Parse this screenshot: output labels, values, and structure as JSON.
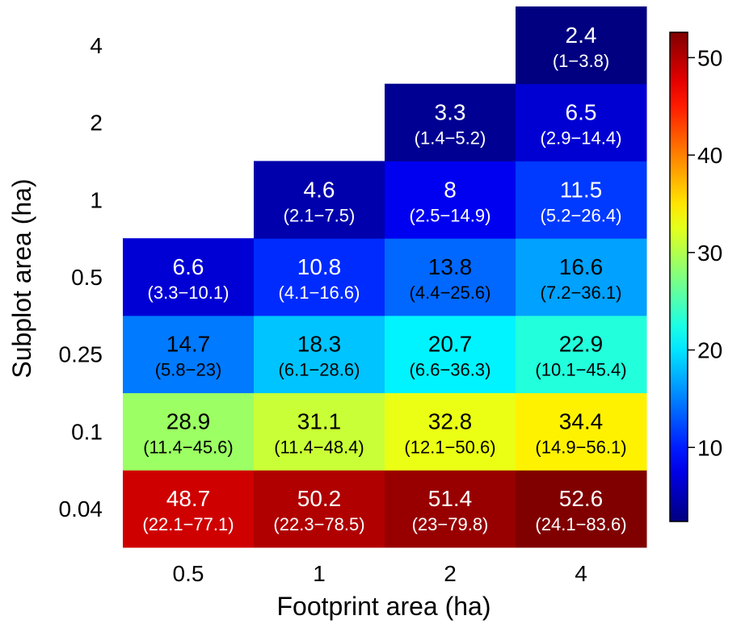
{
  "chart_data": {
    "type": "heatmap",
    "xlabel": "Footprint area (ha)",
    "ylabel": "Subplot area (ha)",
    "x_categories": [
      "0.5",
      "1",
      "2",
      "4"
    ],
    "y_categories": [
      "0.04",
      "0.1",
      "0.25",
      "0.5",
      "1",
      "2",
      "4"
    ],
    "cells": [
      {
        "x": "0.5",
        "y": "0.04",
        "value": 48.7,
        "ci": "(22.1−77.1)"
      },
      {
        "x": "1",
        "y": "0.04",
        "value": 50.2,
        "ci": "(22.3−78.5)"
      },
      {
        "x": "2",
        "y": "0.04",
        "value": 51.4,
        "ci": "(23−79.8)"
      },
      {
        "x": "4",
        "y": "0.04",
        "value": 52.6,
        "ci": "(24.1−83.6)"
      },
      {
        "x": "0.5",
        "y": "0.1",
        "value": 28.9,
        "ci": "(11.4−45.6)"
      },
      {
        "x": "1",
        "y": "0.1",
        "value": 31.1,
        "ci": "(11.4−48.4)"
      },
      {
        "x": "2",
        "y": "0.1",
        "value": 32.8,
        "ci": "(12.1−50.6)"
      },
      {
        "x": "4",
        "y": "0.1",
        "value": 34.4,
        "ci": "(14.9−56.1)"
      },
      {
        "x": "0.5",
        "y": "0.25",
        "value": 14.7,
        "ci": "(5.8−23)"
      },
      {
        "x": "1",
        "y": "0.25",
        "value": 18.3,
        "ci": "(6.1−28.6)"
      },
      {
        "x": "2",
        "y": "0.25",
        "value": 20.7,
        "ci": "(6.6−36.3)"
      },
      {
        "x": "4",
        "y": "0.25",
        "value": 22.9,
        "ci": "(10.1−45.4)"
      },
      {
        "x": "0.5",
        "y": "0.5",
        "value": 6.6,
        "ci": "(3.3−10.1)"
      },
      {
        "x": "1",
        "y": "0.5",
        "value": 10.8,
        "ci": "(4.1−16.6)"
      },
      {
        "x": "2",
        "y": "0.5",
        "value": 13.8,
        "ci": "(4.4−25.6)"
      },
      {
        "x": "4",
        "y": "0.5",
        "value": 16.6,
        "ci": "(7.2−36.1)"
      },
      {
        "x": "1",
        "y": "1",
        "value": 4.6,
        "ci": "(2.1−7.5)"
      },
      {
        "x": "2",
        "y": "1",
        "value": 8,
        "ci": "(2.5−14.9)"
      },
      {
        "x": "4",
        "y": "1",
        "value": 11.5,
        "ci": "(5.2−26.4)"
      },
      {
        "x": "2",
        "y": "2",
        "value": 3.3,
        "ci": "(1.4−5.2)"
      },
      {
        "x": "4",
        "y": "2",
        "value": 6.5,
        "ci": "(2.9−14.4)"
      },
      {
        "x": "4",
        "y": "4",
        "value": 2.4,
        "ci": "(1−3.8)"
      }
    ],
    "colorbar": {
      "colormap": "jet",
      "range": [
        2.4,
        52.6
      ],
      "ticks": [
        10,
        20,
        30,
        40,
        50
      ]
    }
  }
}
